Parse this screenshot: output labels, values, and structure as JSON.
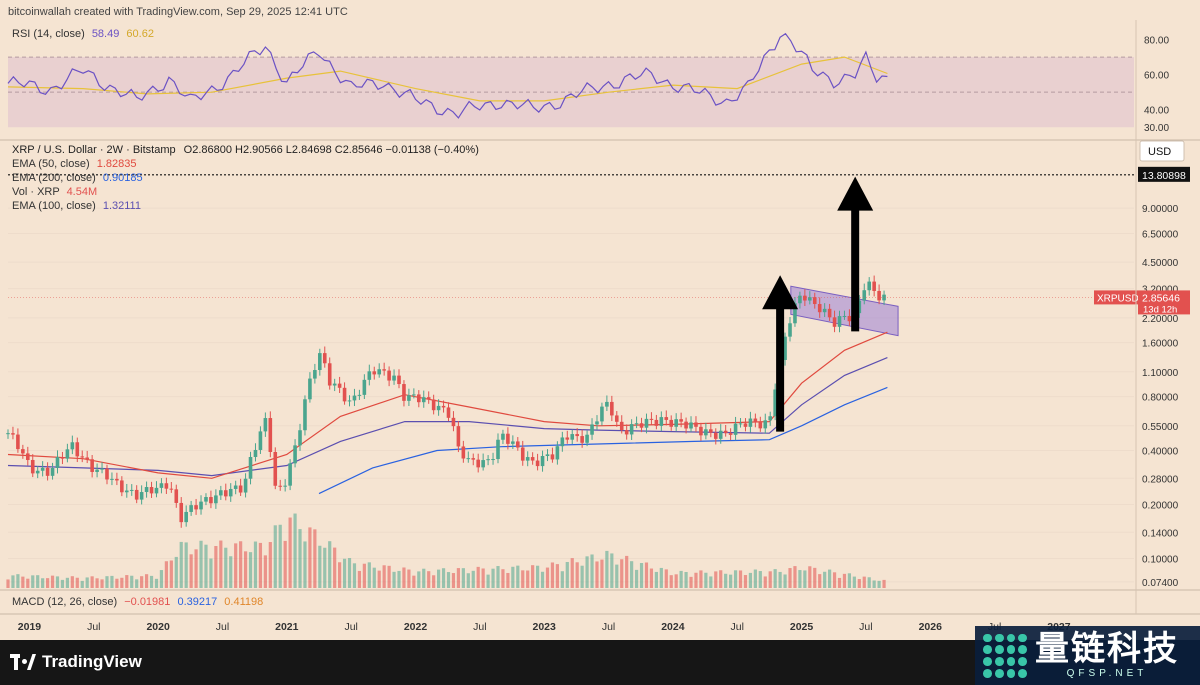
{
  "header_credit": "bitcoinwallah created with TradingView.com, Sep 29, 2025 12:41 UTC",
  "rsi": {
    "label": "RSI (14, close)",
    "value": "58.49",
    "ma_value": "60.62",
    "ticks": [
      "80.00",
      "60.00",
      "40.00",
      "30.00"
    ],
    "tick_values": [
      80,
      60,
      40,
      30
    ],
    "band": [
      30,
      70
    ]
  },
  "price_legend": {
    "title": "XRP / U.S. Dollar · 2W · Bitstamp",
    "ohlc": "O2.86800 H2.90566 L2.84698 C2.85646 −0.01138 (−0.40%)",
    "ema50_label": "EMA (50, close)",
    "ema50_value": "1.82835",
    "ema200_label": "EMA (200, close)",
    "ema200_value": "0.90185",
    "vol_label": "Vol · XRP",
    "vol_value": "4.54M",
    "ema100_label": "EMA (100, close)",
    "ema100_value": "1.32111"
  },
  "macd": {
    "label": "MACD (12, 26, close)",
    "v1": "−0.01981",
    "v2": "0.39217",
    "v3": "0.41198"
  },
  "currency": "USD",
  "price_tag": {
    "symbol": "XRPUSD",
    "price": "2.85646",
    "countdown": "13d 12h"
  },
  "target_tag": "13.80898",
  "x_axis": [
    "2019",
    "Jul",
    "2020",
    "Jul",
    "2021",
    "Jul",
    "2022",
    "Jul",
    "2023",
    "Jul",
    "2024",
    "Jul",
    "2025",
    "Jul",
    "2026",
    "Jul",
    "2027"
  ],
  "footer_logo": "TradingView",
  "watermark": {
    "cn": "量链科技",
    "domain": "QFSP.NET"
  },
  "colors": {
    "panel_bg": "#f5e4d2",
    "up": "#4aa58e",
    "down": "#e2514f",
    "ema50": "#e04a3f",
    "ema100": "#5b4fb0",
    "ema200": "#2a62e0",
    "rsi_line": "#6b52c4",
    "rsi_ma": "#e8c23a",
    "channel": "#9b7fd6",
    "arrow": "#000000"
  },
  "chart_data": {
    "type": "candlestick",
    "title": "XRP / U.S. Dollar · 2W · Bitstamp",
    "scale": "log",
    "y_ticks": [
      13.80898,
      9.0,
      6.5,
      4.5,
      3.2,
      2.2,
      1.6,
      1.1,
      0.8,
      0.55,
      0.4,
      0.28,
      0.2,
      0.14,
      0.1,
      0.074
    ],
    "ylim": [
      0.065,
      20
    ],
    "x_start": "2018-11",
    "x_end": "2027-08",
    "candle_interval": "2W",
    "close_path": [
      [
        "2018-11",
        0.5
      ],
      [
        "2019-01",
        0.32
      ],
      [
        "2019-03",
        0.31
      ],
      [
        "2019-05",
        0.42
      ],
      [
        "2019-07",
        0.32
      ],
      [
        "2019-09",
        0.26
      ],
      [
        "2019-11",
        0.23
      ],
      [
        "2020-01",
        0.24
      ],
      [
        "2020-02",
        0.27
      ],
      [
        "2020-03",
        0.17
      ],
      [
        "2020-05",
        0.2
      ],
      [
        "2020-07",
        0.24
      ],
      [
        "2020-09",
        0.24
      ],
      [
        "2020-11",
        0.6
      ],
      [
        "2020-12",
        0.22
      ],
      [
        "2021-01",
        0.27
      ],
      [
        "2021-02",
        0.45
      ],
      [
        "2021-04",
        1.4
      ],
      [
        "2021-05",
        0.95
      ],
      [
        "2021-07",
        0.75
      ],
      [
        "2021-09",
        1.1
      ],
      [
        "2021-11",
        1.05
      ],
      [
        "2021-12",
        0.8
      ],
      [
        "2022-02",
        0.75
      ],
      [
        "2022-04",
        0.68
      ],
      [
        "2022-05",
        0.4
      ],
      [
        "2022-06",
        0.34
      ],
      [
        "2022-08",
        0.36
      ],
      [
        "2022-09",
        0.48
      ],
      [
        "2022-11",
        0.38
      ],
      [
        "2022-12",
        0.35
      ],
      [
        "2023-02",
        0.37
      ],
      [
        "2023-03",
        0.5
      ],
      [
        "2023-05",
        0.47
      ],
      [
        "2023-07",
        0.75
      ],
      [
        "2023-08",
        0.52
      ],
      [
        "2023-10",
        0.55
      ],
      [
        "2023-12",
        0.61
      ],
      [
        "2024-02",
        0.55
      ],
      [
        "2024-04",
        0.52
      ],
      [
        "2024-06",
        0.48
      ],
      [
        "2024-08",
        0.6
      ],
      [
        "2024-10",
        0.55
      ],
      [
        "2024-11",
        1.2
      ],
      [
        "2024-12",
        2.3
      ],
      [
        "2025-01",
        3.1
      ],
      [
        "2025-02",
        2.6
      ],
      [
        "2025-04",
        2.1
      ],
      [
        "2025-05",
        2.3
      ],
      [
        "2025-06",
        2.2
      ],
      [
        "2025-07",
        3.4
      ],
      [
        "2025-08",
        3.0
      ],
      [
        "2025-09",
        2.86
      ]
    ],
    "ema50_path": [
      [
        "2018-11",
        0.38
      ],
      [
        "2019-06",
        0.36
      ],
      [
        "2020-01",
        0.3
      ],
      [
        "2020-06",
        0.28
      ],
      [
        "2021-01",
        0.38
      ],
      [
        "2021-06",
        0.62
      ],
      [
        "2021-12",
        0.82
      ],
      [
        "2022-06",
        0.7
      ],
      [
        "2023-01",
        0.58
      ],
      [
        "2023-06",
        0.55
      ],
      [
        "2024-01",
        0.56
      ],
      [
        "2024-10",
        0.58
      ],
      [
        "2025-01",
        0.95
      ],
      [
        "2025-05",
        1.45
      ],
      [
        "2025-09",
        1.83
      ]
    ],
    "ema100_path": [
      [
        "2018-11",
        0.33
      ],
      [
        "2019-06",
        0.32
      ],
      [
        "2020-01",
        0.31
      ],
      [
        "2020-06",
        0.29
      ],
      [
        "2021-01",
        0.33
      ],
      [
        "2021-06",
        0.45
      ],
      [
        "2021-12",
        0.58
      ],
      [
        "2022-06",
        0.58
      ],
      [
        "2023-01",
        0.53
      ],
      [
        "2023-06",
        0.52
      ],
      [
        "2024-01",
        0.51
      ],
      [
        "2024-10",
        0.5
      ],
      [
        "2025-01",
        0.72
      ],
      [
        "2025-05",
        1.05
      ],
      [
        "2025-09",
        1.32
      ]
    ],
    "ema200_path": [
      [
        "2021-04",
        0.23
      ],
      [
        "2021-09",
        0.32
      ],
      [
        "2022-03",
        0.4
      ],
      [
        "2022-09",
        0.42
      ],
      [
        "2023-03",
        0.43
      ],
      [
        "2023-09",
        0.44
      ],
      [
        "2024-03",
        0.45
      ],
      [
        "2024-10",
        0.46
      ],
      [
        "2025-01",
        0.55
      ],
      [
        "2025-05",
        0.72
      ],
      [
        "2025-09",
        0.9
      ]
    ],
    "channel": {
      "start": "2024-12",
      "end": "2025-10",
      "upper": [
        3.3,
        2.55
      ],
      "lower": [
        2.3,
        1.75
      ]
    },
    "arrows": [
      {
        "x": "2024-11",
        "from": 0.51,
        "to": 3.8
      },
      {
        "x": "2025-06",
        "from": 1.85,
        "to": 13.5
      }
    ],
    "rsi_path": [
      [
        "2018-11",
        55
      ],
      [
        "2019-03",
        52
      ],
      [
        "2019-06",
        62
      ],
      [
        "2019-11",
        45
      ],
      [
        "2020-02",
        58
      ],
      [
        "2020-04",
        44
      ],
      [
        "2020-08",
        60
      ],
      [
        "2020-11",
        77
      ],
      [
        "2021-01",
        55
      ],
      [
        "2021-04",
        74
      ],
      [
        "2021-07",
        52
      ],
      [
        "2021-10",
        56
      ],
      [
        "2022-01",
        45
      ],
      [
        "2022-05",
        38
      ],
      [
        "2022-09",
        45
      ],
      [
        "2022-12",
        40
      ],
      [
        "2023-03",
        46
      ],
      [
        "2023-07",
        55
      ],
      [
        "2023-11",
        60
      ],
      [
        "2024-02",
        52
      ],
      [
        "2024-06",
        45
      ],
      [
        "2024-08",
        52
      ],
      [
        "2024-11",
        84
      ],
      [
        "2024-12",
        80
      ],
      [
        "2025-02",
        62
      ],
      [
        "2025-04",
        57
      ],
      [
        "2025-06",
        60
      ],
      [
        "2025-07",
        68
      ],
      [
        "2025-08",
        58
      ],
      [
        "2025-09",
        58.49
      ]
    ],
    "rsi_ma_path": [
      [
        "2018-11",
        53
      ],
      [
        "2019-06",
        52
      ],
      [
        "2019-12",
        49
      ],
      [
        "2020-06",
        50
      ],
      [
        "2021-01",
        58
      ],
      [
        "2021-06",
        62
      ],
      [
        "2022-01",
        52
      ],
      [
        "2022-07",
        45
      ],
      [
        "2023-01",
        45
      ],
      [
        "2023-07",
        50
      ],
      [
        "2024-01",
        54
      ],
      [
        "2024-07",
        52
      ],
      [
        "2025-01",
        66
      ],
      [
        "2025-05",
        70
      ],
      [
        "2025-09",
        60.62
      ]
    ],
    "volume_note": "relative, 0-1",
    "volume_path": [
      [
        "2018-11",
        0.15
      ],
      [
        "2019-06",
        0.12
      ],
      [
        "2020-01",
        0.15
      ],
      [
        "2020-03",
        0.5
      ],
      [
        "2020-11",
        0.5
      ],
      [
        "2021-01",
        0.85
      ],
      [
        "2021-04",
        0.6
      ],
      [
        "2021-07",
        0.3
      ],
      [
        "2022-01",
        0.2
      ],
      [
        "2022-06",
        0.22
      ],
      [
        "2023-01",
        0.25
      ],
      [
        "2023-07",
        0.4
      ],
      [
        "2024-01",
        0.18
      ],
      [
        "2024-11",
        0.2
      ],
      [
        "2025-01",
        0.25
      ],
      [
        "2025-09",
        0.08
      ]
    ]
  }
}
